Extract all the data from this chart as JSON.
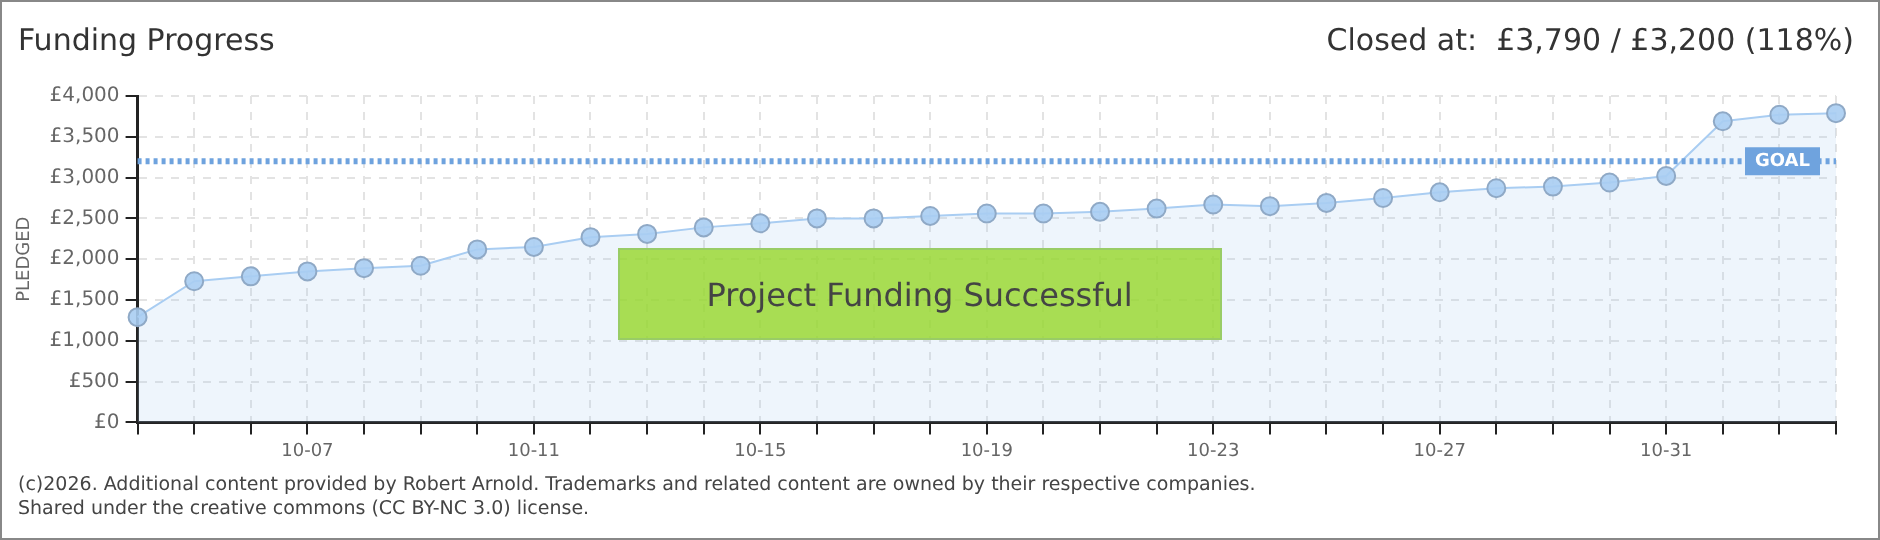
{
  "chart_data": {
    "type": "area",
    "title": "Funding Progress",
    "subtitle": "Closed at:  £3,790 / £3,200 (118%)",
    "ylabel": "PLEDGED",
    "categories": [
      null,
      null,
      null,
      "10-07",
      null,
      null,
      null,
      "10-11",
      null,
      null,
      null,
      "10-15",
      null,
      null,
      null,
      "10-19",
      null,
      null,
      null,
      "10-23",
      null,
      null,
      null,
      "10-27",
      null,
      null,
      null,
      "10-31",
      null,
      null,
      null
    ],
    "series": [
      {
        "color": "#a9cdf2",
        "values": [
          1290,
          1730,
          1790,
          1850,
          1890,
          1920,
          2120,
          2150,
          2270,
          2310,
          2390,
          2440,
          2500,
          2500,
          2530,
          2560,
          2560,
          2580,
          2620,
          2670,
          2650,
          2690,
          2750,
          2820,
          2870,
          2890,
          2940,
          3020,
          3690,
          3770,
          3790
        ]
      }
    ],
    "ylim": [
      0,
      4000
    ],
    "yticks": [
      {
        "value": 0,
        "label": "£0"
      },
      {
        "value": 500,
        "label": "£500"
      },
      {
        "value": 1000,
        "label": "£1,000"
      },
      {
        "value": 1500,
        "label": "£1,500"
      },
      {
        "value": 2000,
        "label": "£2,000"
      },
      {
        "value": 2500,
        "label": "£2,500"
      },
      {
        "value": 3000,
        "label": "£3,000"
      },
      {
        "value": 3500,
        "label": "£3,500"
      },
      {
        "value": 4000,
        "label": "£4,000"
      }
    ],
    "ref_lines": [
      {
        "axis": "y",
        "value": 3200,
        "label": "GOAL",
        "color": "#6fa3de",
        "line_style": "dotted"
      }
    ],
    "grid": true,
    "marker": "circle",
    "annotations": [
      "Project Funding Successful",
      "(c)2026. Additional content provided by Robert Arnold. Trademarks and related content are owned by their respective companies.",
      "Shared under the creative commons (CC BY-NC 3.0) license."
    ]
  }
}
